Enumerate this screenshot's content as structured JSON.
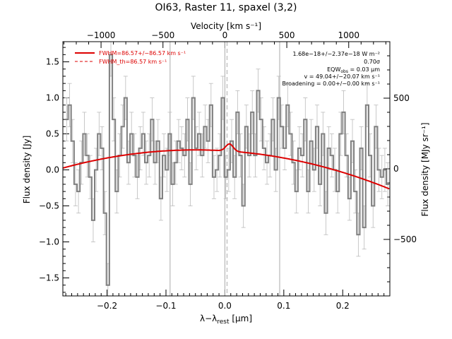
{
  "chart_data": {
    "type": "line",
    "title": "OI63, Raster 11, spaxel (3,2)",
    "xlabel": "λ−λ",
    "xlabel_sub": "rest",
    "xlabel_unit": " [μm]",
    "ylabel": "Flux density [Jy]",
    "top_xlabel": "Velocity [km s⁻¹]",
    "right_ylabel": "Flux density [MJy sr⁻¹]",
    "xlim": [
      -0.275,
      0.28
    ],
    "ylim": [
      -1.75,
      1.78
    ],
    "right_ylim": [
      -900,
      900
    ],
    "xticks": [
      -0.2,
      -0.1,
      0.0,
      0.1,
      0.2
    ],
    "xtick_labels": [
      "−0.2",
      "−0.1",
      "0.0",
      "0.1",
      "0.2"
    ],
    "yticks": [
      -1.5,
      -1.0,
      -0.5,
      0.0,
      0.5,
      1.0,
      1.5
    ],
    "ytick_labels": [
      "−1.5",
      "−1.0",
      "−0.5",
      "0.0",
      "0.5",
      "1.0",
      "1.5"
    ],
    "top_ticks": [
      -1000,
      -500,
      0,
      500,
      1000
    ],
    "top_tick_labels": [
      "−1000",
      "−500",
      "0",
      "500",
      "1000"
    ],
    "right_ticks": [
      -500,
      0,
      500
    ],
    "right_tick_labels": [
      "−500",
      "0",
      "500"
    ],
    "velocity_per_micron": 4758,
    "vertical_lines": [
      -0.093,
      0.0,
      0.093
    ],
    "dashed_line_x": 0.0,
    "legend": {
      "position": "top-left",
      "entries": [
        {
          "label": "FWHM=86.57+/−86.57 km s⁻¹",
          "style": "solid"
        },
        {
          "label": "FWHM_th=86.57 km s⁻¹",
          "style": "dashed"
        }
      ]
    },
    "annotations": [
      "1.68e−18+/−2.37e−18 W m⁻²",
      "0.70σ",
      "EQW",
      "obs",
      " = 0.03 μm",
      "v = 49.04+/−20.07 km s⁻¹",
      "Broadening = 0.00+/−0.00 km s⁻¹"
    ],
    "series": [
      {
        "style": "histogram",
        "color": "#808080",
        "x": [
          -0.2685,
          -0.2635,
          -0.2585,
          -0.2535,
          -0.2485,
          -0.2435,
          -0.2385,
          -0.2335,
          -0.2285,
          -0.2235,
          -0.2185,
          -0.2135,
          -0.2085,
          -0.2035,
          -0.1985,
          -0.1935,
          -0.1885,
          -0.1835,
          -0.1785,
          -0.1735,
          -0.1685,
          -0.1635,
          -0.1585,
          -0.1535,
          -0.1485,
          -0.1435,
          -0.1385,
          -0.1335,
          -0.1285,
          -0.1235,
          -0.1185,
          -0.1135,
          -0.1085,
          -0.1035,
          -0.0985,
          -0.0935,
          -0.0885,
          -0.0835,
          -0.0785,
          -0.0735,
          -0.0685,
          -0.0635,
          -0.0585,
          -0.0535,
          -0.0485,
          -0.0435,
          -0.0385,
          -0.0335,
          -0.0285,
          -0.0235,
          -0.0185,
          -0.0135,
          -0.0085,
          -0.0035,
          0.0015,
          0.0065,
          0.0115,
          0.0165,
          0.0215,
          0.0265,
          0.0315,
          0.0365,
          0.0415,
          0.0465,
          0.0515,
          0.0565,
          0.0615,
          0.0665,
          0.0715,
          0.0765,
          0.0815,
          0.0865,
          0.0915,
          0.0965,
          0.1015,
          0.1065,
          0.1115,
          0.1165,
          0.1215,
          0.1265,
          0.1315,
          0.1365,
          0.1415,
          0.1465,
          0.1515,
          0.1565,
          0.1615,
          0.1665,
          0.1715,
          0.1765,
          0.1815,
          0.1865,
          0.1915,
          0.1965,
          0.2015,
          0.2065,
          0.2115,
          0.2165,
          0.2215,
          0.2265,
          0.2315,
          0.2365,
          0.2415,
          0.2465,
          0.2515,
          0.2565,
          0.2615,
          0.2665,
          0.2715,
          0.2765
        ],
        "y": [
          0.7,
          0.9,
          0.4,
          -0.2,
          -0.3,
          0.1,
          0.5,
          0.2,
          -0.1,
          -0.7,
          0.0,
          0.5,
          0.3,
          -0.6,
          -1.6,
          1.6,
          0.7,
          -0.3,
          0.2,
          0.6,
          1.0,
          0.1,
          0.5,
          0.2,
          -0.1,
          0.3,
          0.5,
          0.1,
          0.2,
          0.7,
          0.1,
          0.4,
          -0.4,
          0.2,
          0.0,
          0.5,
          -0.2,
          0.1,
          0.4,
          0.3,
          0.2,
          0.7,
          -0.2,
          1.0,
          0.3,
          0.5,
          0.2,
          0.6,
          0.4,
          0.9,
          -0.1,
          0.0,
          0.2,
          1.0,
          -0.1,
          0.0,
          0.4,
          -0.1,
          0.8,
          0.2,
          -0.5,
          0.6,
          0.2,
          0.8,
          0.2,
          1.1,
          0.7,
          0.3,
          0.1,
          0.2,
          0.7,
          0.0,
          1.0,
          0.6,
          0.3,
          0.9,
          0.5,
          0.1,
          -0.3,
          0.3,
          0.2,
          0.7,
          -0.3,
          0.4,
          0.0,
          0.6,
          -0.2,
          0.5,
          -0.6,
          0.3,
          0.2,
          0.0,
          -0.3,
          0.5,
          0.8,
          0.2,
          -0.4,
          0.4,
          -0.3,
          -0.9,
          0.3,
          -0.8,
          0.9,
          0.2,
          -0.5,
          0.6,
          0.0,
          -0.1,
          0.0,
          -0.2
        ],
        "yerr": 0.3
      },
      {
        "style": "fit",
        "color": "#dd0000",
        "continuum": {
          "x_peak": -0.05,
          "y_peak": 0.277,
          "a": 4.98,
          "b": -0.025
        },
        "line": {
          "center": 0.0078,
          "amplitude": 0.1,
          "sigma": 0.0062
        }
      }
    ]
  }
}
